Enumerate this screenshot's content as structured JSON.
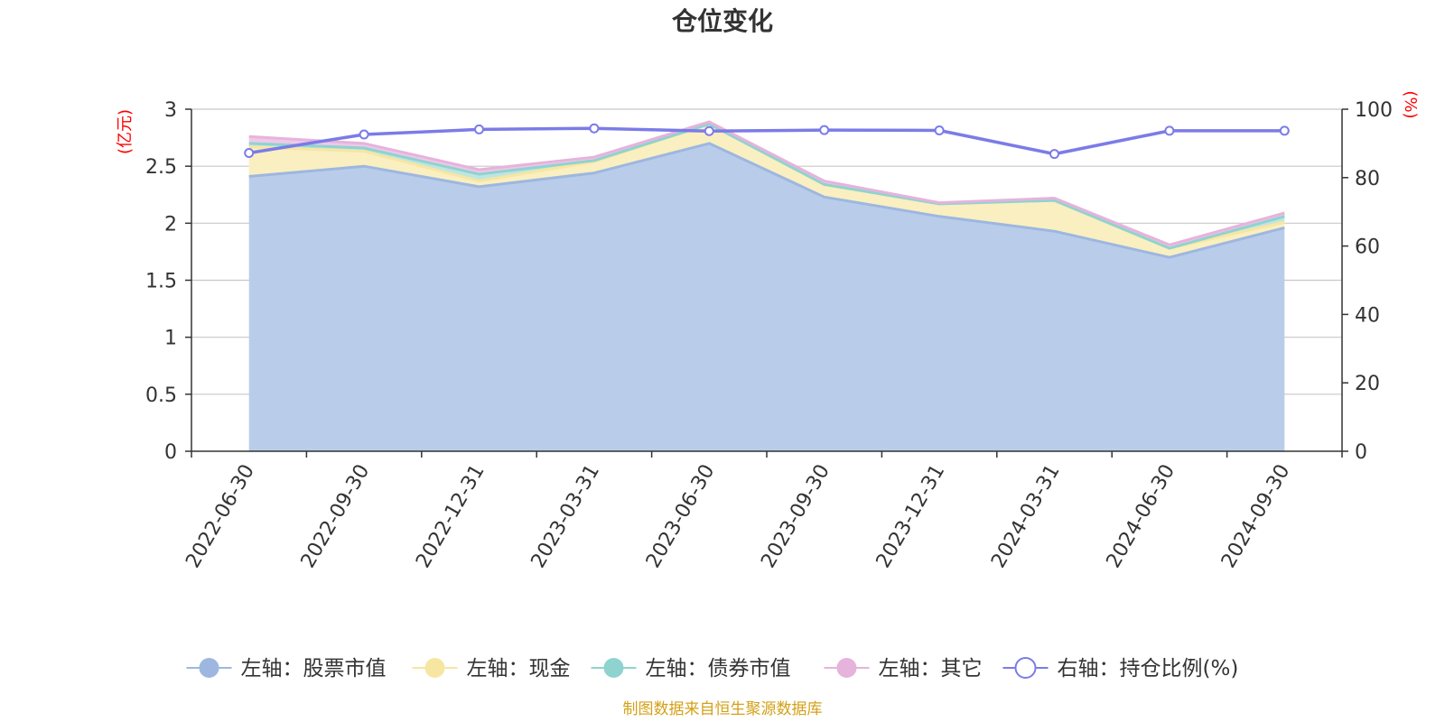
{
  "chart_data": {
    "type": "area",
    "title": "仓位变化",
    "left_unit": "(亿元)",
    "right_unit": "(%)",
    "categories": [
      "2022-06-30",
      "2022-09-30",
      "2022-12-31",
      "2023-03-31",
      "2023-06-30",
      "2023-09-30",
      "2023-12-31",
      "2024-03-31",
      "2024-06-30",
      "2024-09-30"
    ],
    "left_axis": {
      "min": 0,
      "max": 3,
      "ticks": [
        0,
        0.5,
        1,
        1.5,
        2,
        2.5,
        3
      ],
      "tick_labels": [
        "0",
        "0.5",
        "1",
        "1.5",
        "2",
        "2.5",
        "3"
      ]
    },
    "right_axis": {
      "min": 0,
      "max": 100,
      "ticks": [
        0,
        20,
        40,
        60,
        80,
        100
      ],
      "tick_labels": [
        "0",
        "20",
        "40",
        "60",
        "80",
        "100"
      ]
    },
    "series": [
      {
        "name": "左轴：股票市值",
        "axis": "left",
        "stack": true,
        "color": "#9db7e0",
        "fill": "#b9cdea",
        "values": [
          2.41,
          2.5,
          2.32,
          2.44,
          2.7,
          2.23,
          2.06,
          1.93,
          1.7,
          1.96
        ]
      },
      {
        "name": "左轴：现金",
        "axis": "left",
        "stack": true,
        "color": "#f7e6a1",
        "fill": "#faefc0",
        "values": [
          0.26,
          0.13,
          0.05,
          0.1,
          0.17,
          0.11,
          0.11,
          0.27,
          0.08,
          0.05
        ]
      },
      {
        "name": "左轴：债券市值",
        "axis": "left",
        "stack": true,
        "color": "#8fd3d0",
        "fill": "#bfe5e2",
        "values": [
          0.03,
          0.03,
          0.06,
          0.01,
          0.0,
          0.0,
          0.0,
          0.0,
          0.0,
          0.05
        ]
      },
      {
        "name": "左轴：其它",
        "axis": "left",
        "stack": true,
        "color": "#e6b3dc",
        "fill": "#efc8e8",
        "values": [
          0.06,
          0.04,
          0.04,
          0.03,
          0.02,
          0.03,
          0.01,
          0.02,
          0.03,
          0.03
        ]
      },
      {
        "name": "右轴：持仓比例(%)",
        "axis": "right",
        "stack": false,
        "color": "#7b7be8",
        "fill": "none",
        "values": [
          87.2,
          92.6,
          94.1,
          94.4,
          93.6,
          93.9,
          93.8,
          86.9,
          93.7,
          93.7
        ]
      }
    ]
  },
  "footer": {
    "source": "制图数据来自恒生聚源数据库"
  }
}
